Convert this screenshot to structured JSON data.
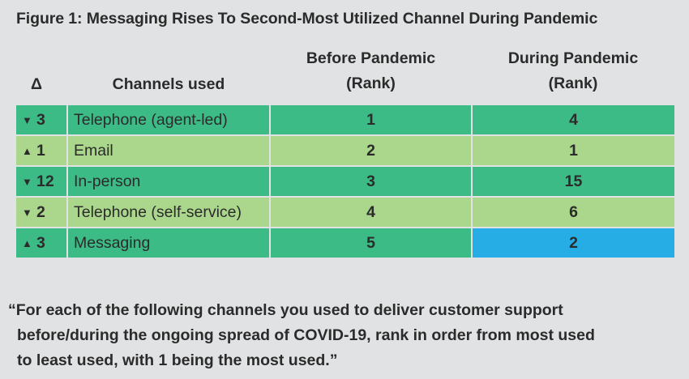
{
  "title": "Figure 1: Messaging Rises To Second-Most Utilized Channel During Pandemic",
  "headers": {
    "delta": "Δ",
    "channels": "Channels used",
    "before_line1": "Before Pandemic",
    "before_line2": "(Rank)",
    "during_line1": "During Pandemic",
    "during_line2": "(Rank)"
  },
  "rows": [
    {
      "arrow": "▼",
      "delta": "3",
      "channel": "Telephone (agent-led)",
      "before": "1",
      "during": "4"
    },
    {
      "arrow": "▲",
      "delta": "1",
      "channel": "Email",
      "before": "2",
      "during": "1"
    },
    {
      "arrow": "▼",
      "delta": "12",
      "channel": "In-person",
      "before": "3",
      "during": "15"
    },
    {
      "arrow": "▼",
      "delta": "2",
      "channel": "Telephone (self-service)",
      "before": "4",
      "during": "6"
    },
    {
      "arrow": "▲",
      "delta": "3",
      "channel": "Messaging",
      "before": "5",
      "during": "2"
    }
  ],
  "quote": {
    "line1": "“For each of the following channels you used to deliver customer support",
    "line2": "before/during the ongoing spread of COVID-19, rank in order from most used",
    "line3": "to least used, with 1 being the most used.”"
  },
  "colors": {
    "background": "#e1e2e3",
    "row_dark": "#3dbb86",
    "row_light": "#aad78b",
    "highlight": "#27ade6"
  }
}
